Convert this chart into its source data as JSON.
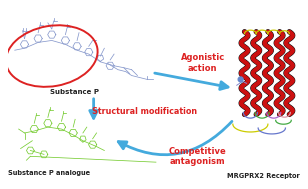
{
  "bg_color": "#ffffff",
  "substance_p_label": "Substance P",
  "analogue_label": "Substance P analogue",
  "receptor_label": "MRGPRX2 Receptor",
  "structural_mod_label": "Structural modification",
  "agonistic_label": "Agonistic\naction",
  "competitive_label": "Competitive\nantagonism",
  "ellipse_color": "#dd2222",
  "arrow_color": "#44aadd",
  "red_text_color": "#dd2222",
  "blue_mol_color": "#8899cc",
  "green_mol_color": "#77cc33",
  "label_color": "#222222",
  "helix_color": "#cc1111",
  "helix_black": "#111111",
  "loop_yellow": "#cccc00",
  "loop_blue": "#6677cc",
  "loop_green": "#44aa44",
  "loop_purple": "#aa66cc",
  "loop_pink": "#dd99aa"
}
